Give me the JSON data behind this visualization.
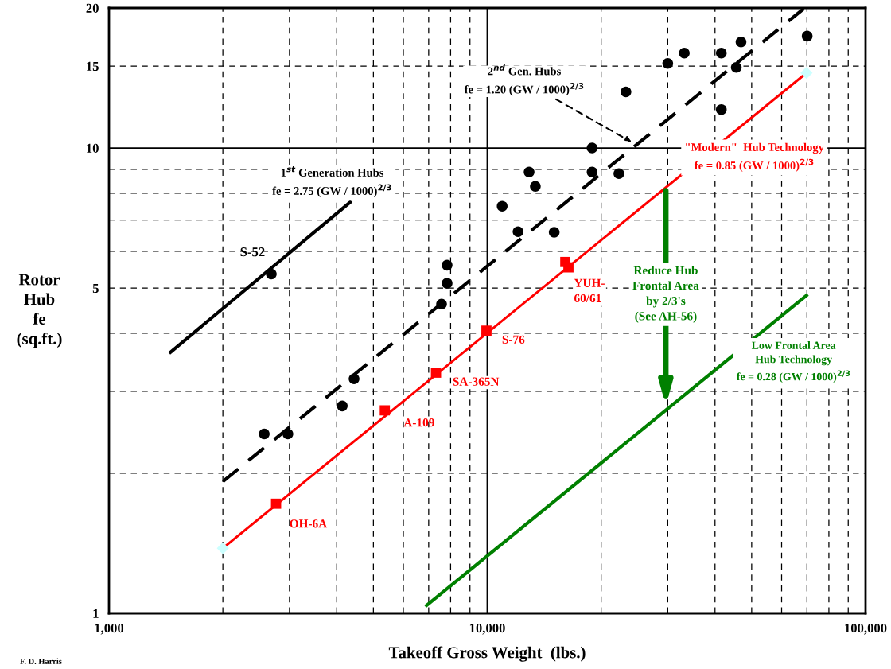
{
  "chart_data": {
    "type": "scatter",
    "log": "xy",
    "xlim": [
      1000,
      100000
    ],
    "ylim": [
      1,
      20
    ],
    "xticks": [
      {
        "value": 1000,
        "label": "1,000"
      },
      {
        "value": 2000,
        "label": null
      },
      {
        "value": 3000,
        "label": null
      },
      {
        "value": 4000,
        "label": null
      },
      {
        "value": 5000,
        "label": null
      },
      {
        "value": 6000,
        "label": null
      },
      {
        "value": 7000,
        "label": null
      },
      {
        "value": 8000,
        "label": null
      },
      {
        "value": 9000,
        "label": null
      },
      {
        "value": 10000,
        "label": "10,000"
      },
      {
        "value": 20000,
        "label": null
      },
      {
        "value": 30000,
        "label": null
      },
      {
        "value": 40000,
        "label": null
      },
      {
        "value": 50000,
        "label": null
      },
      {
        "value": 60000,
        "label": null
      },
      {
        "value": 70000,
        "label": null
      },
      {
        "value": 80000,
        "label": null
      },
      {
        "value": 90000,
        "label": null
      },
      {
        "value": 100000,
        "label": "100,000"
      }
    ],
    "yticks": [
      1,
      {
        "value": 2,
        "label": null
      },
      {
        "value": 3,
        "label": null
      },
      {
        "value": 4,
        "label": null
      },
      5,
      {
        "value": 6,
        "label": null
      },
      {
        "value": 7,
        "label": null
      },
      {
        "value": 8,
        "label": null
      },
      {
        "value": 9,
        "label": null
      },
      10,
      15,
      20
    ],
    "grid": true,
    "xlabel": "Takeoff Gross Weight  (lbs.)",
    "ylabel": "Rotor\nHub\nfe\n(sq.ft.)",
    "series": [
      {
        "marker": "circle",
        "color": "#000000",
        "x": [
          2686,
          2573,
          2971,
          4137,
          4445,
          7571,
          7831,
          7831,
          10950,
          12060,
          12900,
          13400,
          15030,
          18930,
          18930,
          22280,
          23260,
          30000,
          33180,
          41570,
          41570,
          45530,
          46860,
          70100
        ],
        "values": [
          5.36,
          2.43,
          2.43,
          2.79,
          3.19,
          4.62,
          5.12,
          5.6,
          7.5,
          6.61,
          8.88,
          8.27,
          6.59,
          10.0,
          8.88,
          8.81,
          13.2,
          15.2,
          16.0,
          16.0,
          12.1,
          14.9,
          16.9,
          17.4
        ]
      },
      {
        "type": "line",
        "line_style": "solid",
        "color": "#000000",
        "x": [
          1454,
          4340
        ],
        "values": [
          3.64,
          7.65
        ]
      },
      {
        "type": "line",
        "line_style": "dashed",
        "color": "#000000",
        "x": [
          2000,
          69000
        ],
        "values": [
          1.92,
          20
        ]
      },
      {
        "type": "line",
        "line_style": "solid",
        "color": "#ff0000",
        "x": [
          2000,
          69800
        ],
        "values": [
          1.38,
          14.5
        ]
      },
      {
        "marker": "diamond",
        "color": "#ccffff",
        "x": [
          2000,
          69800
        ],
        "values": [
          1.38,
          14.5
        ]
      },
      {
        "marker": "square",
        "color": "#ff0000",
        "x": [
          2765,
          5360,
          7320,
          9950,
          16080,
          16390
        ],
        "values": [
          1.72,
          2.73,
          3.29,
          4.05,
          5.69,
          5.54
        ]
      },
      {
        "type": "line",
        "line_style": "solid",
        "color": "#008000",
        "x": [
          6910,
          69800
        ],
        "values": [
          1.04,
          4.82
        ]
      }
    ],
    "annotations": [
      "1$^{st}$ Generation Hubs\nfe = 2.75 (GW / 1000)$^{2/3}$",
      {
        "text": "S-52",
        "x": 2686,
        "y": 5.36
      },
      {
        "text": "2$^{nd}$ Gen. Hubs\nfe = 1.20 (GW / 1000)$^{2/3}$",
        "x": 24060,
        "y": 10.3
      },
      "\"Modern\"  Hub Technology\nfe = 0.85 (GW / 1000)$^{2/3}$",
      {
        "text": "OH-6A",
        "x": 2765,
        "y": 1.72
      },
      {
        "text": "A-109",
        "x": 5360,
        "y": 2.73
      },
      {
        "text": "SA-365N",
        "x": 7320,
        "y": 3.29
      },
      {
        "text": "S-76",
        "x": 9950,
        "y": 4.05
      },
      {
        "text": "YUH-\n60/61",
        "x": 16390,
        "y": 5.54
      },
      "Reduce Hub\nFrontal Area\nby 2/3's\n(See AH-56)",
      "Low Frontal Area\nHub Technology\nfe = 0.28 (GW / 1000)$^{2/3}$",
      "F. D. Harris"
    ]
  }
}
